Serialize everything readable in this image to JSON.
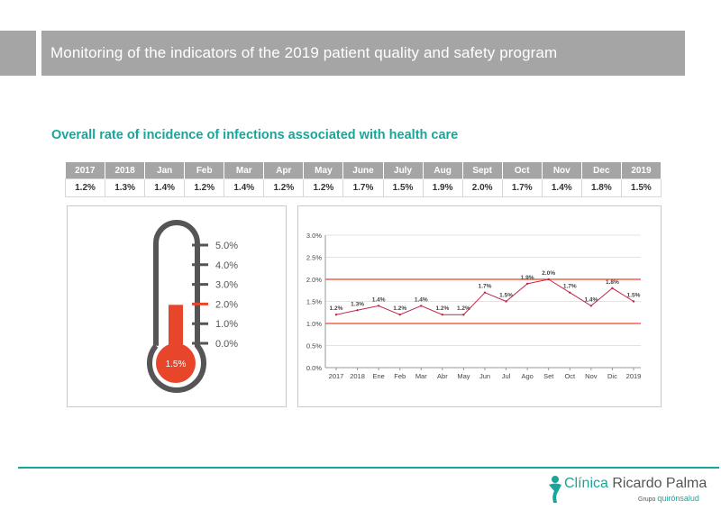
{
  "header": {
    "title": "Monitoring of the indicators of the 2019 patient quality and safety program",
    "subtitle": "Overall rate of incidence of infections associated with health care"
  },
  "table": {
    "columns": [
      "2017",
      "2018",
      "Jan",
      "Feb",
      "Mar",
      "Apr",
      "May",
      "June",
      "July",
      "Aug",
      "Sept",
      "Oct",
      "Nov",
      "Dec",
      "2019"
    ],
    "values": [
      "1.2%",
      "1.3%",
      "1.4%",
      "1.2%",
      "1.4%",
      "1.2%",
      "1.2%",
      "1.7%",
      "1.5%",
      "1.9%",
      "2.0%",
      "1.7%",
      "1.4%",
      "1.8%",
      "1.5%"
    ]
  },
  "thermometer": {
    "scale_labels": [
      "5.0%",
      "4.0%",
      "3.0%",
      "2.0%",
      "1.0%",
      "0.0%"
    ],
    "scale_values": [
      5.0,
      4.0,
      3.0,
      2.0,
      1.0,
      0.0
    ],
    "highlight_tick": 2.0,
    "value": 1.5,
    "value_label": "1.5%",
    "fill_color": "#e8462a",
    "outline_color": "#555555"
  },
  "chart_data": {
    "type": "line",
    "title": "",
    "xlabel": "",
    "ylabel": "",
    "categories": [
      "2017",
      "2018",
      "Ene",
      "Feb",
      "Mar",
      "Abr",
      "May",
      "Jun",
      "Jul",
      "Ago",
      "Set",
      "Oct",
      "Nov",
      "Dic",
      "2019"
    ],
    "series": [
      {
        "values": [
          1.2,
          1.3,
          1.4,
          1.2,
          1.4,
          1.2,
          1.2,
          1.7,
          1.5,
          1.9,
          2.0,
          1.7,
          1.4,
          1.8,
          1.5
        ],
        "labels": [
          "1.2%",
          "1.3%",
          "1.4%",
          "1.2%",
          "1.4%",
          "1.2%",
          "1.2%",
          "1.7%",
          "1.5%",
          "1.9%",
          "2.0%",
          "1.7%",
          "1.4%",
          "1.8%",
          "1.5%"
        ],
        "color": "#c0284a"
      }
    ],
    "reference_lines": [
      2.0,
      1.0
    ],
    "reference_color": "#e8462a",
    "yticks": [
      "3.0%",
      "2.5%",
      "2.0%",
      "1.5%",
      "1.0%",
      "0.5%",
      "0.0%"
    ],
    "ytick_values": [
      3.0,
      2.5,
      2.0,
      1.5,
      1.0,
      0.5,
      0.0
    ],
    "ylim": [
      0,
      3.0
    ],
    "grid": true
  },
  "logo": {
    "name_first": "Clínica",
    "name_rest": " Ricardo Palma",
    "group_prefix": "Grupo ",
    "group_brand": "quirónsalud"
  },
  "colors": {
    "accent": "#1aa59a",
    "header_gray": "#a5a5a5"
  }
}
